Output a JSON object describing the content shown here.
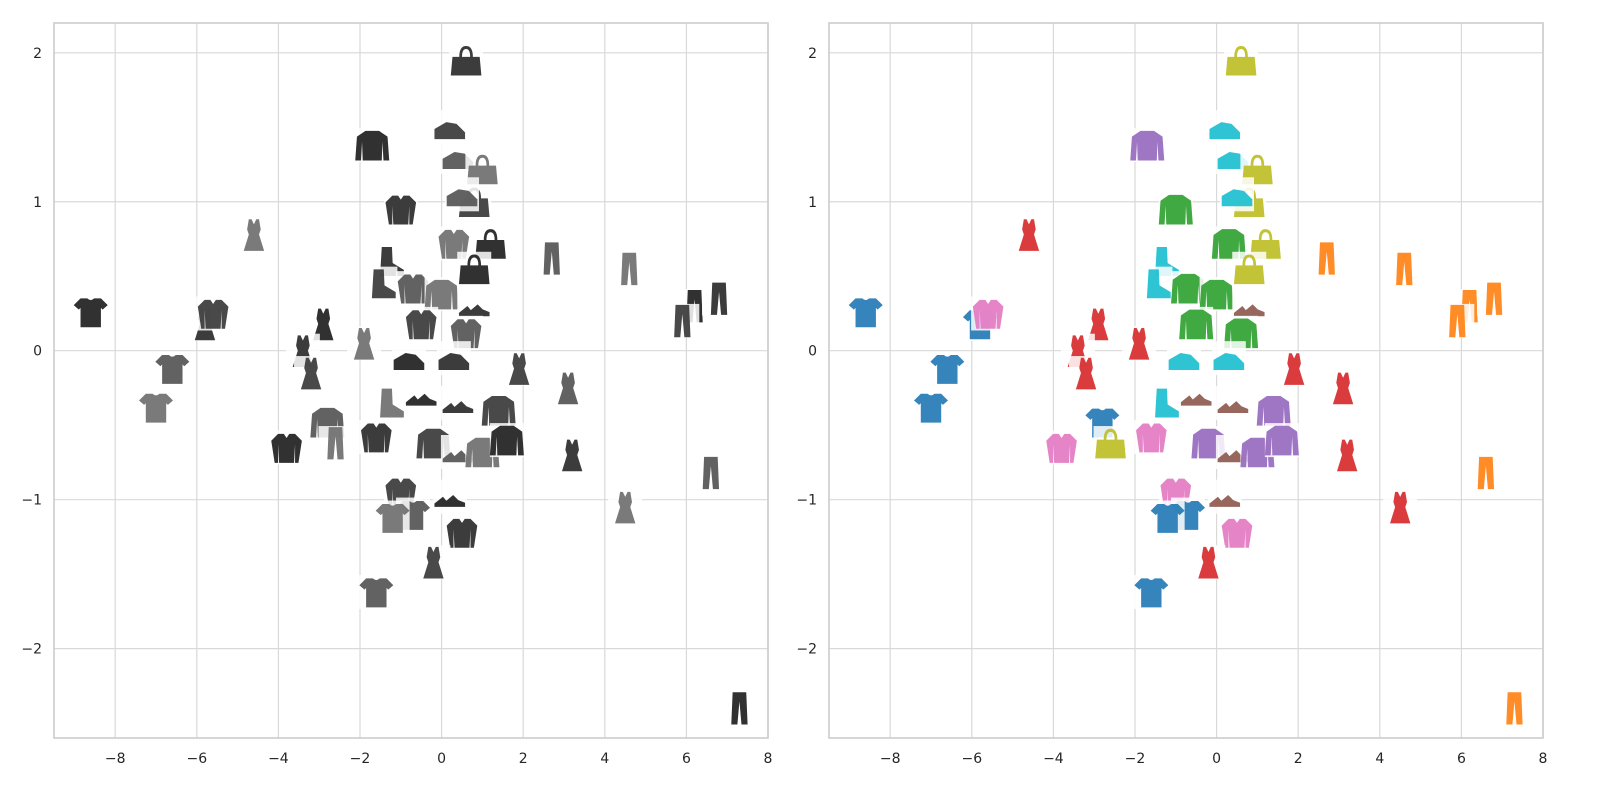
{
  "chart_data": [
    {
      "type": "scatter",
      "title": "",
      "xlabel": "",
      "ylabel": "",
      "xlim": [
        -9.5,
        8
      ],
      "ylim": [
        -2.6,
        2.2
      ],
      "xticks": [
        -8,
        -6,
        -4,
        -2,
        0,
        2,
        4,
        6,
        8
      ],
      "yticks": [
        -2,
        -1,
        0,
        1,
        2
      ],
      "grid": true,
      "marker_style": "grayscale-clothing-thumbnails",
      "points": [
        {
          "x": 0.6,
          "y": 1.95,
          "label": "bag"
        },
        {
          "x": 0.2,
          "y": 1.5,
          "label": "sneaker"
        },
        {
          "x": 0.4,
          "y": 1.3,
          "label": "sneaker"
        },
        {
          "x": 1.0,
          "y": 1.22,
          "label": "bag"
        },
        {
          "x": -1.7,
          "y": 1.38,
          "label": "pullover"
        },
        {
          "x": -1.0,
          "y": 0.95,
          "label": "shirt"
        },
        {
          "x": 0.8,
          "y": 1.0,
          "label": "bag"
        },
        {
          "x": 0.5,
          "y": 1.05,
          "label": "sneaker"
        },
        {
          "x": 0.3,
          "y": 0.72,
          "label": "shirt"
        },
        {
          "x": 1.2,
          "y": 0.72,
          "label": "bag"
        },
        {
          "x": -1.3,
          "y": 0.6,
          "label": "ankle-boot"
        },
        {
          "x": -1.5,
          "y": 0.45,
          "label": "ankle-boot"
        },
        {
          "x": -0.7,
          "y": 0.42,
          "label": "shirt"
        },
        {
          "x": 0.0,
          "y": 0.38,
          "label": "pullover"
        },
        {
          "x": 0.8,
          "y": 0.55,
          "label": "bag"
        },
        {
          "x": 0.8,
          "y": 0.3,
          "label": "sandal"
        },
        {
          "x": -0.5,
          "y": 0.18,
          "label": "shirt"
        },
        {
          "x": 0.6,
          "y": 0.12,
          "label": "shirt"
        },
        {
          "x": -1.9,
          "y": 0.05,
          "label": "dress"
        },
        {
          "x": -0.8,
          "y": -0.05,
          "label": "sneaker"
        },
        {
          "x": 0.3,
          "y": -0.05,
          "label": "sneaker"
        },
        {
          "x": 1.9,
          "y": -0.12,
          "label": "dress"
        },
        {
          "x": 3.1,
          "y": -0.25,
          "label": "dress"
        },
        {
          "x": -1.3,
          "y": -0.35,
          "label": "ankle-boot"
        },
        {
          "x": -0.5,
          "y": -0.3,
          "label": "sandal"
        },
        {
          "x": 0.4,
          "y": -0.35,
          "label": "sandal"
        },
        {
          "x": 1.4,
          "y": -0.4,
          "label": "pullover"
        },
        {
          "x": -2.8,
          "y": -0.48,
          "label": "pullover"
        },
        {
          "x": -2.6,
          "y": -0.62,
          "label": "trouser"
        },
        {
          "x": -3.8,
          "y": -0.65,
          "label": "shirt"
        },
        {
          "x": -1.6,
          "y": -0.58,
          "label": "shirt"
        },
        {
          "x": -0.2,
          "y": -0.62,
          "label": "pullover"
        },
        {
          "x": 0.4,
          "y": -0.68,
          "label": "sandal"
        },
        {
          "x": 1.0,
          "y": -0.68,
          "label": "pullover"
        },
        {
          "x": 1.6,
          "y": -0.6,
          "label": "pullover"
        },
        {
          "x": 3.2,
          "y": -0.7,
          "label": "dress"
        },
        {
          "x": -1.0,
          "y": -0.95,
          "label": "shirt"
        },
        {
          "x": -0.7,
          "y": -1.1,
          "label": "t-shirt"
        },
        {
          "x": -1.2,
          "y": -1.12,
          "label": "t-shirt"
        },
        {
          "x": 0.2,
          "y": -0.98,
          "label": "sandal"
        },
        {
          "x": 0.5,
          "y": -1.22,
          "label": "shirt"
        },
        {
          "x": -0.2,
          "y": -1.42,
          "label": "dress"
        },
        {
          "x": -1.6,
          "y": -1.62,
          "label": "t-shirt"
        },
        {
          "x": -4.6,
          "y": 0.78,
          "label": "dress"
        },
        {
          "x": -8.6,
          "y": 0.26,
          "label": "t-shirt"
        },
        {
          "x": -5.8,
          "y": 0.18,
          "label": "dress"
        },
        {
          "x": -5.6,
          "y": 0.25,
          "label": "shirt"
        },
        {
          "x": -6.6,
          "y": -0.12,
          "label": "t-shirt"
        },
        {
          "x": -7.0,
          "y": -0.38,
          "label": "t-shirt"
        },
        {
          "x": -2.9,
          "y": 0.18,
          "label": "dress"
        },
        {
          "x": -3.4,
          "y": 0.0,
          "label": "dress"
        },
        {
          "x": -3.2,
          "y": -0.15,
          "label": "dress"
        },
        {
          "x": 2.7,
          "y": 0.62,
          "label": "trouser"
        },
        {
          "x": 4.6,
          "y": 0.55,
          "label": "trouser"
        },
        {
          "x": 6.2,
          "y": 0.3,
          "label": "trouser"
        },
        {
          "x": 6.8,
          "y": 0.35,
          "label": "trouser"
        },
        {
          "x": 5.9,
          "y": 0.2,
          "label": "trouser"
        },
        {
          "x": 6.6,
          "y": -0.82,
          "label": "trouser"
        },
        {
          "x": 4.5,
          "y": -1.05,
          "label": "dress"
        },
        {
          "x": 7.3,
          "y": -2.4,
          "label": "trouser"
        }
      ]
    },
    {
      "type": "scatter",
      "title": "",
      "xlabel": "",
      "ylabel": "",
      "xlim": [
        -9.5,
        8
      ],
      "ylim": [
        -2.6,
        2.2
      ],
      "xticks": [
        -8,
        -6,
        -4,
        -2,
        0,
        2,
        4,
        6,
        8
      ],
      "yticks": [
        -2,
        -1,
        0,
        1,
        2
      ],
      "grid": true,
      "marker_style": "class-colored-clothing-thumbnails",
      "class_colors": {
        "t-shirt": "#1f77b4",
        "trouser": "#ff7f0e",
        "pullover": "#9467bd",
        "dress": "#d62728",
        "coat": "#2ca02c",
        "sandal": "#8c564b",
        "shirt": "#e377c2",
        "sneaker": "#17becf",
        "bag": "#bcbd22",
        "ankle-boot": "#17becf"
      },
      "points": [
        {
          "x": 0.6,
          "y": 1.95,
          "label": "bag"
        },
        {
          "x": 0.2,
          "y": 1.5,
          "label": "sneaker"
        },
        {
          "x": 0.4,
          "y": 1.3,
          "label": "sneaker"
        },
        {
          "x": 1.0,
          "y": 1.22,
          "label": "bag"
        },
        {
          "x": -1.7,
          "y": 1.38,
          "label": "pullover"
        },
        {
          "x": -1.0,
          "y": 0.95,
          "label": "coat"
        },
        {
          "x": 0.8,
          "y": 1.0,
          "label": "bag"
        },
        {
          "x": 0.5,
          "y": 1.05,
          "label": "sneaker"
        },
        {
          "x": 0.3,
          "y": 0.72,
          "label": "coat"
        },
        {
          "x": 1.2,
          "y": 0.72,
          "label": "bag"
        },
        {
          "x": -1.3,
          "y": 0.6,
          "label": "ankle-boot"
        },
        {
          "x": -1.5,
          "y": 0.45,
          "label": "ankle-boot"
        },
        {
          "x": -0.7,
          "y": 0.42,
          "label": "coat"
        },
        {
          "x": 0.0,
          "y": 0.38,
          "label": "coat"
        },
        {
          "x": 0.8,
          "y": 0.55,
          "label": "bag"
        },
        {
          "x": 0.8,
          "y": 0.3,
          "label": "sandal"
        },
        {
          "x": -0.5,
          "y": 0.18,
          "label": "coat"
        },
        {
          "x": 0.6,
          "y": 0.12,
          "label": "coat"
        },
        {
          "x": -1.9,
          "y": 0.05,
          "label": "dress"
        },
        {
          "x": -0.8,
          "y": -0.05,
          "label": "sneaker"
        },
        {
          "x": 0.3,
          "y": -0.05,
          "label": "sneaker"
        },
        {
          "x": 1.9,
          "y": -0.12,
          "label": "dress"
        },
        {
          "x": 3.1,
          "y": -0.25,
          "label": "dress"
        },
        {
          "x": -1.3,
          "y": -0.35,
          "label": "ankle-boot"
        },
        {
          "x": -0.5,
          "y": -0.3,
          "label": "sandal"
        },
        {
          "x": 0.4,
          "y": -0.35,
          "label": "sandal"
        },
        {
          "x": 1.4,
          "y": -0.4,
          "label": "pullover"
        },
        {
          "x": -2.8,
          "y": -0.48,
          "label": "t-shirt"
        },
        {
          "x": -2.6,
          "y": -0.62,
          "label": "bag"
        },
        {
          "x": -3.8,
          "y": -0.65,
          "label": "shirt"
        },
        {
          "x": -1.6,
          "y": -0.58,
          "label": "shirt"
        },
        {
          "x": -0.2,
          "y": -0.62,
          "label": "pullover"
        },
        {
          "x": 0.4,
          "y": -0.68,
          "label": "sandal"
        },
        {
          "x": 1.0,
          "y": -0.68,
          "label": "pullover"
        },
        {
          "x": 1.6,
          "y": -0.6,
          "label": "pullover"
        },
        {
          "x": 3.2,
          "y": -0.7,
          "label": "dress"
        },
        {
          "x": -1.0,
          "y": -0.95,
          "label": "shirt"
        },
        {
          "x": -0.7,
          "y": -1.1,
          "label": "t-shirt"
        },
        {
          "x": -1.2,
          "y": -1.12,
          "label": "t-shirt"
        },
        {
          "x": 0.2,
          "y": -0.98,
          "label": "sandal"
        },
        {
          "x": 0.5,
          "y": -1.22,
          "label": "shirt"
        },
        {
          "x": -0.2,
          "y": -1.42,
          "label": "dress"
        },
        {
          "x": -1.6,
          "y": -1.62,
          "label": "t-shirt"
        },
        {
          "x": -4.6,
          "y": 0.78,
          "label": "dress"
        },
        {
          "x": -8.6,
          "y": 0.26,
          "label": "t-shirt"
        },
        {
          "x": -5.8,
          "y": 0.18,
          "label": "t-shirt"
        },
        {
          "x": -5.6,
          "y": 0.25,
          "label": "shirt"
        },
        {
          "x": -6.6,
          "y": -0.12,
          "label": "t-shirt"
        },
        {
          "x": -7.0,
          "y": -0.38,
          "label": "t-shirt"
        },
        {
          "x": -2.9,
          "y": 0.18,
          "label": "dress"
        },
        {
          "x": -3.4,
          "y": 0.0,
          "label": "dress"
        },
        {
          "x": -3.2,
          "y": -0.15,
          "label": "dress"
        },
        {
          "x": 2.7,
          "y": 0.62,
          "label": "trouser"
        },
        {
          "x": 4.6,
          "y": 0.55,
          "label": "trouser"
        },
        {
          "x": 6.2,
          "y": 0.3,
          "label": "trouser"
        },
        {
          "x": 6.8,
          "y": 0.35,
          "label": "trouser"
        },
        {
          "x": 5.9,
          "y": 0.2,
          "label": "trouser"
        },
        {
          "x": 6.6,
          "y": -0.82,
          "label": "trouser"
        },
        {
          "x": 4.5,
          "y": -1.05,
          "label": "dress"
        },
        {
          "x": 7.3,
          "y": -2.4,
          "label": "trouser"
        }
      ]
    }
  ]
}
